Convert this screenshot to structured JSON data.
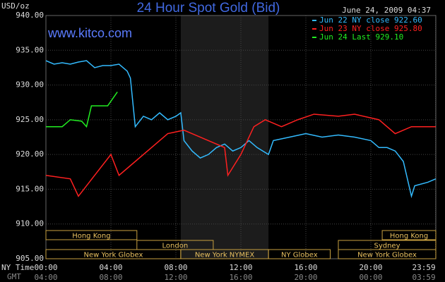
{
  "chart_data": {
    "type": "line",
    "title": "24 Hour Spot Gold (Bid)",
    "y_label": "USD/oz",
    "timestamp": "June 24, 2009 04:37",
    "site": "www.kitco.com",
    "x_label": "NY Time",
    "x2_label": "GMT",
    "xlim": [
      0,
      24
    ],
    "ylim": [
      905,
      940
    ],
    "grid": true,
    "xticks": [
      {
        "value": 0,
        "label": "00:00"
      },
      {
        "value": 4,
        "label": "04:00"
      },
      {
        "value": 8,
        "label": "08:00"
      },
      {
        "value": 12,
        "label": "12:00"
      },
      {
        "value": 16,
        "label": "16:00"
      },
      {
        "value": 20,
        "label": "20:00"
      },
      {
        "value": 23.983,
        "label": "23:59"
      }
    ],
    "x2ticks": [
      {
        "value": 0,
        "label": "04:00"
      },
      {
        "value": 4,
        "label": "08:00"
      },
      {
        "value": 8,
        "label": "12:00"
      },
      {
        "value": 12,
        "label": "16:00"
      },
      {
        "value": 16,
        "label": "20:00"
      },
      {
        "value": 20,
        "label": "00:00"
      },
      {
        "value": 23.983,
        "label": "03:59"
      }
    ],
    "yticks": [
      {
        "value": 905,
        "label": "905.00"
      },
      {
        "value": 910,
        "label": "910.00"
      },
      {
        "value": 915,
        "label": "915.00"
      },
      {
        "value": 920,
        "label": "920.00"
      },
      {
        "value": 925,
        "label": "925.00"
      },
      {
        "value": 930,
        "label": "930.00"
      },
      {
        "value": 935,
        "label": "935.00"
      },
      {
        "value": 940,
        "label": "940.00"
      }
    ],
    "series": [
      {
        "name": "Jun 22 NY close 922.60",
        "color": "#33bbff",
        "x": [
          0,
          0.5,
          1,
          1.5,
          2,
          2.5,
          3,
          3.5,
          4,
          4.5,
          5,
          5.2,
          5.5,
          6,
          6.5,
          7,
          7.5,
          8,
          8.3,
          8.5,
          9,
          9.5,
          10,
          10.5,
          11,
          11.5,
          12,
          12.5,
          13,
          13.7,
          14,
          15,
          16,
          17,
          18,
          19,
          20,
          20.5,
          21,
          21.5,
          22,
          22.5,
          22.7,
          23.5,
          24
        ],
        "values": [
          933.5,
          933,
          933.2,
          933,
          933.3,
          933.5,
          932.5,
          932.8,
          932.8,
          933,
          932,
          931,
          924,
          925.5,
          925,
          926,
          925,
          925.5,
          926,
          922,
          920.5,
          919.5,
          920,
          921,
          921.5,
          920.5,
          921,
          922,
          921,
          920,
          922,
          922.5,
          923,
          922.5,
          922.8,
          922.5,
          922,
          921,
          921,
          920.5,
          919,
          914,
          915.5,
          916,
          916.5
        ]
      },
      {
        "name": "Jun 23 NY close 925.80",
        "color": "#ff2020",
        "x": [
          0,
          1.5,
          2,
          3,
          4,
          4.5,
          5.5,
          6.5,
          7.5,
          8.5,
          10,
          11,
          11.2,
          12,
          12.8,
          13.5,
          14.5,
          15.5,
          16.5,
          18,
          19,
          20.5,
          21.5,
          22.5,
          24
        ],
        "values": [
          917,
          916.5,
          914,
          917,
          920,
          917,
          919,
          921,
          923,
          923.5,
          922,
          921,
          917,
          920,
          924,
          925,
          924,
          925,
          925.8,
          925.5,
          925.8,
          925,
          923,
          924,
          924
        ]
      },
      {
        "name": "Jun 24 Last 929.10",
        "color": "#22ee22",
        "x": [
          0,
          1,
          1.5,
          2.2,
          2.5,
          2.8,
          3.8,
          4.4
        ],
        "values": [
          924,
          924,
          925,
          924.8,
          924,
          927,
          927,
          929
        ]
      }
    ],
    "sessions": [
      [
        {
          "name": "Hong Kong",
          "start": 0,
          "end": 5.6
        },
        {
          "name": "Hong Kong",
          "start": 20.7,
          "end": 24
        }
      ],
      [
        {
          "name": "London",
          "start": 5.6,
          "end": 10.3
        },
        {
          "name": "Sydney",
          "start": 18,
          "end": 24
        }
      ],
      [
        {
          "name": "New York Globex",
          "start": 0,
          "end": 8.3
        },
        {
          "name": "New York NYMEX",
          "start": 8.3,
          "end": 13.7
        },
        {
          "name": "NY Globex",
          "start": 13.7,
          "end": 17.5
        },
        {
          "name": "New York Globex",
          "start": 18,
          "end": 24
        }
      ]
    ]
  }
}
